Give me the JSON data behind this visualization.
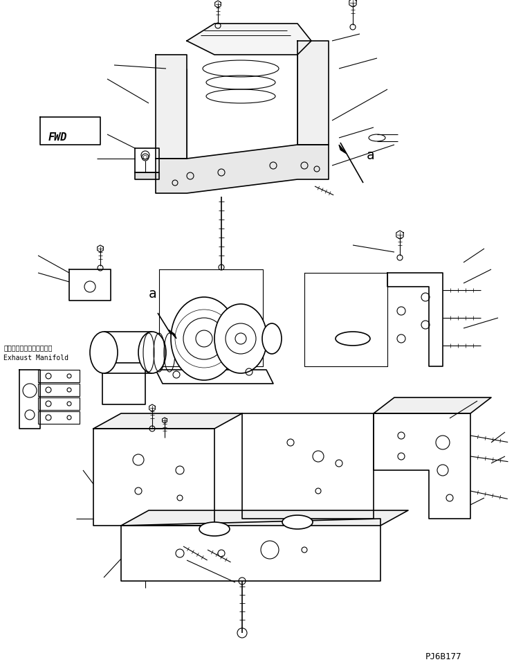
{
  "background_color": "#ffffff",
  "line_color": "#000000",
  "lw": 0.8,
  "lw2": 1.2,
  "fig_width": 7.43,
  "fig_height": 9.7,
  "dpi": 100,
  "label_a1": "a",
  "label_a2": "a",
  "label_fwd": "FWD",
  "label_exhaust_jp": "エキゾーストマニホールド",
  "label_exhaust_en": "Exhaust Manifold",
  "label_code": "PJ6B177",
  "text_color": "#000000"
}
